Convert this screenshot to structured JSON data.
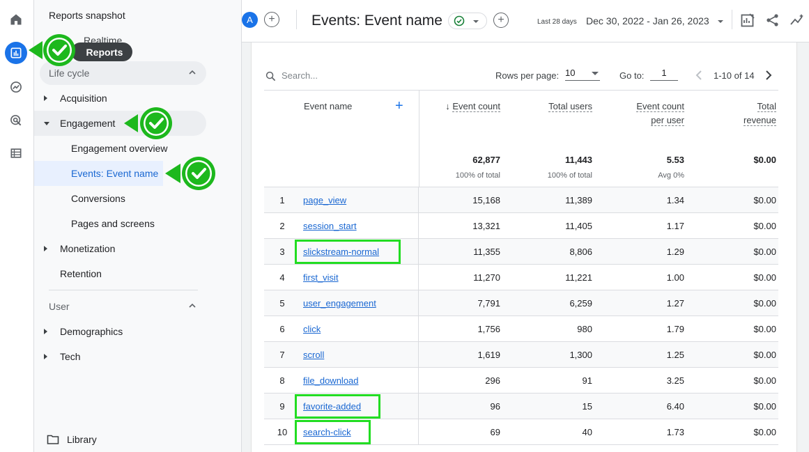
{
  "rail": {
    "items": [
      {
        "name": "home-icon"
      },
      {
        "name": "reports-icon",
        "active": true
      },
      {
        "name": "explore-icon"
      },
      {
        "name": "advertising-icon"
      },
      {
        "name": "configure-icon"
      }
    ],
    "active_color": "#1a73e8"
  },
  "nav": {
    "title": "Reports snapshot",
    "realtime": "Realtime",
    "lifecycle_label": "Life cycle",
    "items": [
      {
        "label": "Acquisition",
        "level": 1,
        "expanded": false
      },
      {
        "label": "Engagement",
        "level": 1,
        "expanded": true
      },
      {
        "label": "Engagement overview",
        "level": 2
      },
      {
        "label": "Events: Event name",
        "level": 2,
        "selected": true
      },
      {
        "label": "Conversions",
        "level": 2
      },
      {
        "label": "Pages and screens",
        "level": 2
      },
      {
        "label": "Monetization",
        "level": 1,
        "expanded": false
      },
      {
        "label": "Retention",
        "level": 1
      }
    ],
    "user_label": "User",
    "user_items": [
      {
        "label": "Demographics"
      },
      {
        "label": "Tech"
      }
    ],
    "library": "Library"
  },
  "tooltip": {
    "label": "Reports"
  },
  "header": {
    "avatar": "A",
    "title": "Events: Event name",
    "date_small": "Last 28 days",
    "date_range": "Dec 30, 2022 - Jan 26, 2023"
  },
  "toolbar": {
    "search_placeholder": "Search...",
    "rows_per_page_label": "Rows per page:",
    "rows_per_page": "10",
    "goto_label": "Go to:",
    "goto_value": "1",
    "page_range": "1-10 of 14"
  },
  "table": {
    "dimension_header": "Event name",
    "columns": [
      {
        "l1": "Event count",
        "l2": "",
        "total": "62,877",
        "sub": "100% of total",
        "sorted": true
      },
      {
        "l1": "Total users",
        "l2": "",
        "total": "11,443",
        "sub": "100% of total"
      },
      {
        "l1": "Event count",
        "l2": "per user",
        "total": "5.53",
        "sub": "Avg 0%"
      },
      {
        "l1": "Total",
        "l2": "revenue",
        "total": "$0.00",
        "sub": ""
      }
    ],
    "rows": [
      {
        "idx": "1",
        "name": "page_view",
        "c1": "15,168",
        "c2": "11,389",
        "c3": "1.34",
        "c4": "$0.00"
      },
      {
        "idx": "2",
        "name": "session_start",
        "c1": "13,321",
        "c2": "11,405",
        "c3": "1.17",
        "c4": "$0.00"
      },
      {
        "idx": "3",
        "name": "slickstream-normal",
        "c1": "11,355",
        "c2": "8,806",
        "c3": "1.29",
        "c4": "$0.00",
        "highlight": true
      },
      {
        "idx": "4",
        "name": "first_visit",
        "c1": "11,270",
        "c2": "11,221",
        "c3": "1.00",
        "c4": "$0.00"
      },
      {
        "idx": "5",
        "name": "user_engagement",
        "c1": "7,791",
        "c2": "6,259",
        "c3": "1.27",
        "c4": "$0.00"
      },
      {
        "idx": "6",
        "name": "click",
        "c1": "1,756",
        "c2": "980",
        "c3": "1.79",
        "c4": "$0.00"
      },
      {
        "idx": "7",
        "name": "scroll",
        "c1": "1,619",
        "c2": "1,300",
        "c3": "1.25",
        "c4": "$0.00"
      },
      {
        "idx": "8",
        "name": "file_download",
        "c1": "296",
        "c2": "91",
        "c3": "3.25",
        "c4": "$0.00"
      },
      {
        "idx": "9",
        "name": "favorite-added",
        "c1": "96",
        "c2": "15",
        "c3": "6.40",
        "c4": "$0.00",
        "highlight": true
      },
      {
        "idx": "10",
        "name": "search-click",
        "c1": "69",
        "c2": "40",
        "c3": "1.73",
        "c4": "$0.00",
        "highlight": true
      }
    ]
  },
  "colors": {
    "link": "#1967d2",
    "highlight": "#22dd22",
    "check_badge": "#1db81d"
  }
}
